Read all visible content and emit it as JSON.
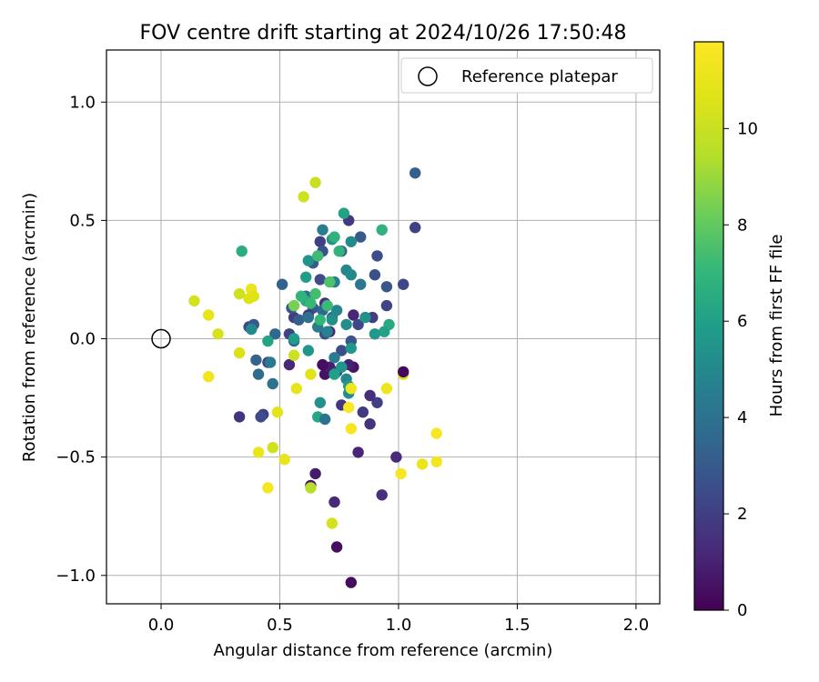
{
  "chart_data": {
    "type": "scatter",
    "title": "FOV centre drift starting at 2024/10/26 17:50:48",
    "xlabel": "Angular distance from reference (arcmin)",
    "ylabel": "Rotation from reference (arcmin)",
    "xlim": [
      -0.23,
      2.1
    ],
    "ylim": [
      -1.12,
      1.22
    ],
    "xticks": [
      0.0,
      0.5,
      1.0,
      1.5,
      2.0
    ],
    "xtick_labels": [
      "0.0",
      "0.5",
      "1.0",
      "1.5",
      "2.0"
    ],
    "yticks": [
      -1.0,
      -0.5,
      0.0,
      0.5,
      1.0
    ],
    "ytick_labels": [
      "−1.0",
      "−0.5",
      "0.0",
      "0.5",
      "1.0"
    ],
    "grid": true,
    "legend": {
      "location": "upper right",
      "entries": [
        "Reference platepar"
      ]
    },
    "reference_point": {
      "name": "Reference platepar",
      "x": 0.0,
      "y": 0.0
    },
    "colorbar": {
      "label": "Hours from first FF file",
      "colormap": "viridis",
      "range": [
        0,
        11.8
      ],
      "ticks": [
        0,
        2,
        4,
        6,
        8,
        10
      ],
      "tick_labels": [
        "0",
        "2",
        "4",
        "6",
        "8",
        "10"
      ]
    },
    "points": [
      [
        0.8,
        -1.03,
        0.3
      ],
      [
        0.74,
        -0.88,
        0.4
      ],
      [
        0.73,
        -0.69,
        1.2
      ],
      [
        0.63,
        -0.62,
        0.6
      ],
      [
        0.65,
        -0.57,
        0.8
      ],
      [
        0.93,
        -0.66,
        1.5
      ],
      [
        0.83,
        -0.48,
        1.1
      ],
      [
        0.99,
        -0.5,
        1.3
      ],
      [
        0.88,
        -0.36,
        1.6
      ],
      [
        0.85,
        -0.31,
        1.8
      ],
      [
        0.91,
        -0.27,
        2.0
      ],
      [
        0.88,
        -0.24,
        1.4
      ],
      [
        0.76,
        -0.28,
        1.7
      ],
      [
        0.69,
        -0.15,
        0.5
      ],
      [
        0.71,
        -0.12,
        0.9
      ],
      [
        0.81,
        -0.12,
        0.6
      ],
      [
        0.79,
        -0.11,
        1.0
      ],
      [
        0.68,
        -0.11,
        0.4
      ],
      [
        0.74,
        -0.14,
        1.9
      ],
      [
        0.54,
        -0.11,
        1.2
      ],
      [
        0.45,
        -0.1,
        2.2
      ],
      [
        0.43,
        -0.32,
        2.0
      ],
      [
        0.33,
        -0.33,
        1.6
      ],
      [
        0.42,
        -0.33,
        2.4
      ],
      [
        0.76,
        -0.05,
        2.5
      ],
      [
        0.8,
        -0.01,
        2.8
      ],
      [
        0.71,
        0.03,
        1.3
      ],
      [
        0.69,
        0.02,
        2.6
      ],
      [
        0.81,
        0.1,
        1.1
      ],
      [
        0.83,
        0.06,
        2.3
      ],
      [
        0.89,
        0.09,
        2.0
      ],
      [
        0.95,
        0.14,
        2.2
      ],
      [
        0.9,
        0.27,
        2.6
      ],
      [
        0.95,
        0.22,
        2.9
      ],
      [
        1.02,
        0.23,
        2.3
      ],
      [
        0.91,
        0.35,
        2.5
      ],
      [
        0.84,
        0.43,
        3.0
      ],
      [
        0.79,
        0.5,
        1.8
      ],
      [
        1.07,
        0.47,
        2.1
      ],
      [
        1.07,
        0.7,
        3.2
      ],
      [
        0.76,
        0.37,
        3.4
      ],
      [
        0.67,
        0.41,
        2.0
      ],
      [
        0.68,
        0.37,
        2.7
      ],
      [
        0.64,
        0.32,
        3.1
      ],
      [
        0.67,
        0.25,
        2.4
      ],
      [
        0.64,
        0.13,
        2.9
      ],
      [
        0.69,
        0.15,
        1.5
      ],
      [
        0.62,
        0.1,
        1.7
      ],
      [
        0.56,
        0.09,
        1.9
      ],
      [
        0.55,
        0.13,
        2.8
      ],
      [
        0.51,
        0.23,
        3.3
      ],
      [
        0.48,
        0.02,
        3.6
      ],
      [
        0.37,
        0.05,
        2.3
      ],
      [
        0.39,
        0.06,
        3.0
      ],
      [
        0.4,
        -0.09,
        3.4
      ],
      [
        0.46,
        -0.1,
        4.3
      ],
      [
        0.41,
        -0.15,
        3.7
      ],
      [
        0.47,
        -0.19,
        4.1
      ],
      [
        0.54,
        0.02,
        2.1
      ],
      [
        0.56,
        -0.01,
        3.5
      ],
      [
        0.61,
        0.18,
        3.8
      ],
      [
        0.58,
        0.08,
        3.2
      ],
      [
        0.62,
        0.09,
        4.0
      ],
      [
        0.66,
        0.05,
        4.4
      ],
      [
        0.68,
        0.12,
        3.6
      ],
      [
        0.72,
        0.09,
        3.9
      ],
      [
        0.73,
        0.24,
        4.6
      ],
      [
        0.78,
        0.29,
        4.8
      ],
      [
        0.8,
        0.27,
        5.0
      ],
      [
        0.84,
        0.23,
        4.2
      ],
      [
        0.68,
        0.46,
        4.5
      ],
      [
        0.72,
        0.42,
        5.4
      ],
      [
        0.8,
        0.41,
        5.1
      ],
      [
        0.77,
        0.53,
        6.1
      ],
      [
        0.62,
        0.33,
        5.5
      ],
      [
        0.61,
        0.26,
        5.8
      ],
      [
        0.72,
        0.08,
        5.3
      ],
      [
        0.74,
        0.12,
        4.9
      ],
      [
        0.78,
        0.06,
        5.2
      ],
      [
        0.7,
        0.03,
        4.7
      ],
      [
        0.73,
        -0.08,
        4.4
      ],
      [
        0.76,
        -0.12,
        5.5
      ],
      [
        0.78,
        -0.17,
        4.9
      ],
      [
        0.79,
        -0.2,
        5.8
      ],
      [
        0.8,
        -0.04,
        5.6
      ],
      [
        0.73,
        -0.15,
        6.0
      ],
      [
        0.62,
        -0.05,
        5.6
      ],
      [
        0.67,
        -0.27,
        5.4
      ],
      [
        0.66,
        -0.33,
        6.3
      ],
      [
        0.69,
        -0.34,
        4.1
      ],
      [
        0.79,
        -0.23,
        5.2
      ],
      [
        0.45,
        -0.01,
        6.2
      ],
      [
        0.38,
        0.04,
        5.0
      ],
      [
        0.34,
        0.37,
        6.6
      ],
      [
        0.56,
        0.0,
        5.9
      ],
      [
        0.61,
        0.16,
        6.4
      ],
      [
        0.59,
        0.18,
        6.9
      ],
      [
        0.63,
        0.15,
        7.1
      ],
      [
        0.67,
        0.08,
        7.0
      ],
      [
        0.65,
        0.19,
        7.4
      ],
      [
        0.7,
        0.14,
        7.2
      ],
      [
        0.75,
        0.37,
        6.9
      ],
      [
        0.66,
        0.35,
        7.3
      ],
      [
        0.73,
        0.43,
        6.8
      ],
      [
        0.93,
        0.46,
        6.8
      ],
      [
        0.96,
        0.06,
        6.4
      ],
      [
        0.94,
        0.03,
        6.1
      ],
      [
        0.9,
        0.02,
        5.7
      ],
      [
        0.86,
        0.09,
        5.3
      ],
      [
        0.71,
        0.24,
        7.6
      ],
      [
        0.56,
        0.14,
        8.4
      ],
      [
        0.6,
        0.6,
        10.1
      ],
      [
        0.65,
        0.66,
        10.0
      ],
      [
        0.33,
        0.19,
        10.2
      ],
      [
        0.37,
        0.17,
        10.6
      ],
      [
        0.38,
        0.21,
        11.0
      ],
      [
        0.39,
        0.18,
        10.7
      ],
      [
        0.14,
        0.16,
        10.3
      ],
      [
        0.2,
        0.1,
        10.9
      ],
      [
        0.24,
        0.02,
        10.4
      ],
      [
        0.2,
        -0.16,
        11.3
      ],
      [
        0.33,
        -0.06,
        10.5
      ],
      [
        0.49,
        -0.31,
        10.8
      ],
      [
        0.41,
        -0.48,
        11.1
      ],
      [
        0.47,
        -0.46,
        10.2
      ],
      [
        0.45,
        -0.63,
        11.5
      ],
      [
        0.52,
        -0.51,
        11.0
      ],
      [
        0.57,
        -0.21,
        10.9
      ],
      [
        0.56,
        -0.07,
        10.1
      ],
      [
        0.63,
        -0.63,
        9.5
      ],
      [
        0.72,
        -0.78,
        10.3
      ],
      [
        0.63,
        -0.15,
        10.7
      ],
      [
        0.79,
        -0.29,
        11.7
      ],
      [
        0.8,
        -0.21,
        11.3
      ],
      [
        0.8,
        -0.38,
        11.5
      ],
      [
        0.95,
        -0.21,
        11.2
      ],
      [
        1.01,
        -0.57,
        11.6
      ],
      [
        1.02,
        -0.15,
        10.4
      ],
      [
        1.1,
        -0.53,
        11.1
      ],
      [
        1.16,
        -0.52,
        11.4
      ],
      [
        1.16,
        -0.4,
        11.6
      ],
      [
        1.02,
        -0.14,
        0.2
      ]
    ]
  }
}
